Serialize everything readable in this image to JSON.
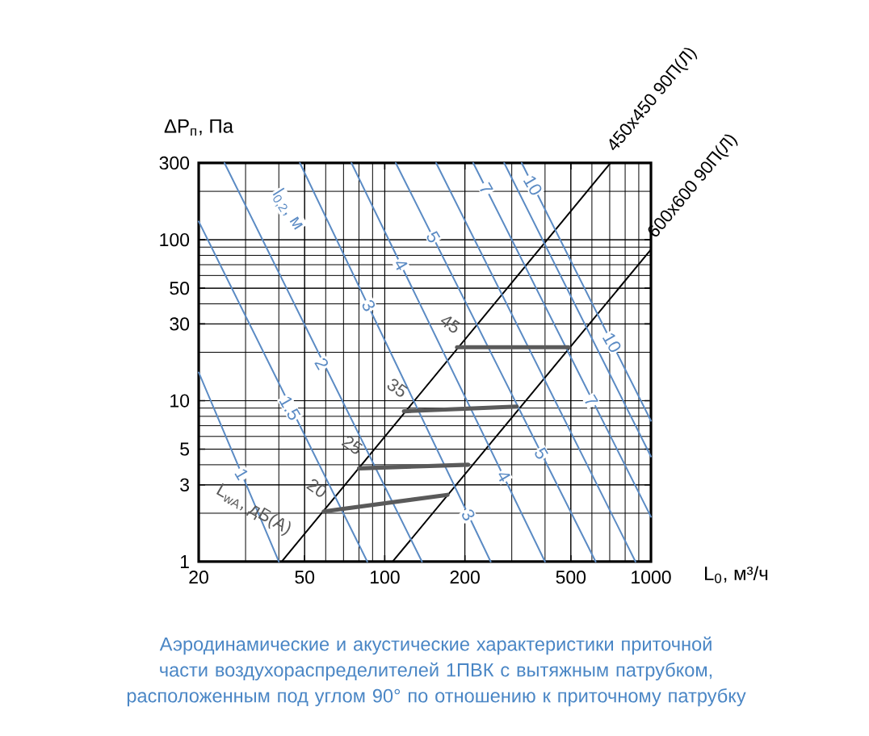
{
  "chart_data": {
    "type": "line",
    "log": "xy",
    "grid": true,
    "xlabel": "L$_{0}$, м³/ч",
    "ylabel": "ΔP$_{п}$, Па",
    "xlim": [
      20,
      1000
    ],
    "ylim": [
      1,
      300
    ],
    "xticks": [
      20,
      50,
      100,
      200,
      500,
      1000
    ],
    "yticks": [
      1,
      3,
      5,
      10,
      30,
      50,
      100,
      300
    ],
    "series": [
      {
        "name": "450x450 90П(Л)",
        "color": "#000000",
        "x": [
          41,
          705
        ],
        "values": [
          1,
          300
        ]
      },
      {
        "name": "600x600 90П(Л)",
        "color": "#000000",
        "x": [
          107,
          1000
        ],
        "values": [
          1,
          87
        ]
      },
      {
        "color": "#5b8bc4",
        "x": [
          20,
          40
        ],
        "values": [
          15,
          1
        ]
      },
      {
        "color": "#5b8bc4",
        "x": [
          20,
          86
        ],
        "values": [
          130,
          1
        ]
      },
      {
        "color": "#5b8bc4",
        "x": [
          25,
          138
        ],
        "values": [
          300,
          1
        ]
      },
      {
        "color": "#5b8bc4",
        "x": [
          48,
          250
        ],
        "values": [
          300,
          1
        ]
      },
      {
        "color": "#5b8bc4",
        "x": [
          75,
          400
        ],
        "values": [
          300,
          1
        ]
      },
      {
        "color": "#5b8bc4",
        "x": [
          110,
          620
        ],
        "values": [
          300,
          1
        ]
      },
      {
        "color": "#5b8bc4",
        "x": [
          156,
          875
        ],
        "values": [
          300,
          1
        ]
      },
      {
        "color": "#5b8bc4",
        "x": [
          215,
          1000
        ],
        "values": [
          300,
          1.9
        ]
      },
      {
        "color": "#5b8bc4",
        "x": [
          281,
          1000
        ],
        "values": [
          300,
          4.5
        ]
      },
      {
        "color": "#5b8bc4",
        "x": [
          327,
          1000
        ],
        "values": [
          300,
          7.5
        ]
      },
      {
        "name": "20",
        "color": "#5a5a5a",
        "x": [
          59,
          172
        ],
        "values": [
          2.05,
          2.6
        ]
      },
      {
        "name": "25",
        "color": "#5a5a5a",
        "x": [
          80,
          206
        ],
        "values": [
          3.8,
          4
        ]
      },
      {
        "name": "35",
        "color": "#5a5a5a",
        "x": [
          118,
          313
        ],
        "values": [
          8.6,
          9.2
        ]
      },
      {
        "name": "45",
        "color": "#5a5a5a",
        "x": [
          187,
          490
        ],
        "values": [
          21.5,
          21.5
        ]
      }
    ],
    "annotations": [
      "Аэродинамические и акустические характеристики приточной части воздухораспределителей 1ПВК с вытяжным патрубком, расположенным под углом 90° по отношению к приточному патрубку",
      "l$_{0,2}$, м",
      "L$_{wA}$, дБ(A)",
      {
        "text": "1",
        "x": 29,
        "y": 3.5
      },
      {
        "text": "1.5",
        "x": 44,
        "y": 9
      },
      {
        "text": "2",
        "x": 58,
        "y": 17
      },
      {
        "text": "3",
        "x": 87,
        "y": 39
      },
      {
        "text": "4",
        "x": 115,
        "y": 70
      },
      {
        "text": "5",
        "x": 152,
        "y": 104
      },
      {
        "text": "7",
        "x": 240,
        "y": 208
      },
      {
        "text": "10",
        "x": 360,
        "y": 218
      },
      {
        "text": "3",
        "x": 206,
        "y": 1.95
      },
      {
        "text": "4",
        "x": 280,
        "y": 3.4
      },
      {
        "text": "5",
        "x": 387,
        "y": 4.7
      },
      {
        "text": "7",
        "x": 596,
        "y": 10
      },
      {
        "text": "10",
        "x": 714,
        "y": 23
      }
    ]
  }
}
